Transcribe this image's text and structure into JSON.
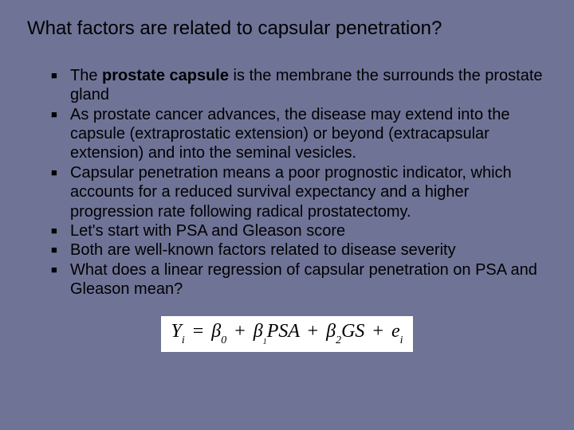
{
  "slide": {
    "background_color": "#6f7497",
    "text_color": "#000000",
    "title_fontsize": 24,
    "body_fontsize": 20,
    "font_family": "Arial",
    "bullet_glyph": "■",
    "bullet_color": "#000000"
  },
  "title": "What factors are related to capsular penetration?",
  "bullets": [
    {
      "prefix": "The ",
      "bold": "prostate capsule",
      "rest": " is the membrane the surrounds the prostate gland"
    },
    {
      "text": "As prostate cancer advances, the disease may extend into the capsule (extraprostatic extension) or beyond (extracapsular extension) and into the seminal vesicles."
    },
    {
      "text": "Capsular penetration means a poor prognostic indicator, which accounts for a reduced survival expectancy and a higher progression rate following radical prostatectomy."
    },
    {
      "text": "Let's start with PSA and Gleason score"
    },
    {
      "text": "Both are well-known factors related to disease severity"
    },
    {
      "text": "What does a linear regression of capsular penetration on PSA and Gleason mean?"
    }
  ],
  "equation": {
    "box_background": "#ffffff",
    "font_family": "Times New Roman",
    "font_size": 24,
    "lhs_var": "Y",
    "lhs_sub": "i",
    "terms": [
      {
        "sym": "β",
        "sub": "0"
      },
      {
        "sym": "β",
        "sub": "1",
        "mult": "PSA",
        "sub_small": true
      },
      {
        "sym": "β",
        "sub": "2",
        "mult": "GS"
      },
      {
        "sym": "e",
        "sub": "i"
      }
    ]
  }
}
